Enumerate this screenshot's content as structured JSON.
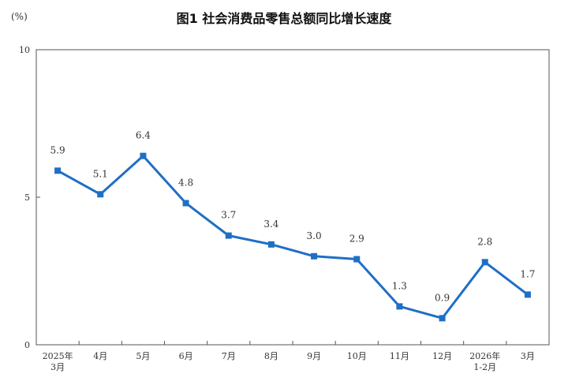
{
  "chart_data": {
    "type": "line",
    "title": "图1 社会消费品零售总额同比增长速度",
    "ylabel": "(%)",
    "ylim": [
      0,
      10
    ],
    "yticks": [
      "0",
      "5",
      "10"
    ],
    "categories": [
      [
        "2025年",
        "3月"
      ],
      [
        "4月"
      ],
      [
        "5月"
      ],
      [
        "6月"
      ],
      [
        "7月"
      ],
      [
        "8月"
      ],
      [
        "9月"
      ],
      [
        "10月"
      ],
      [
        "11月"
      ],
      [
        "12月"
      ],
      [
        "2026年",
        "1-2月"
      ],
      [
        "3月"
      ]
    ],
    "values": [
      5.9,
      5.1,
      6.4,
      4.8,
      3.7,
      3.4,
      3.0,
      2.9,
      1.3,
      0.9,
      2.8,
      1.7
    ],
    "value_labels": [
      "5.9",
      "5.1",
      "6.4",
      "4.8",
      "3.7",
      "3.4",
      "3.0",
      "2.9",
      "1.3",
      "0.9",
      "2.8",
      "1.7"
    ],
    "line_color": "#1f6fc5",
    "grid": false
  }
}
